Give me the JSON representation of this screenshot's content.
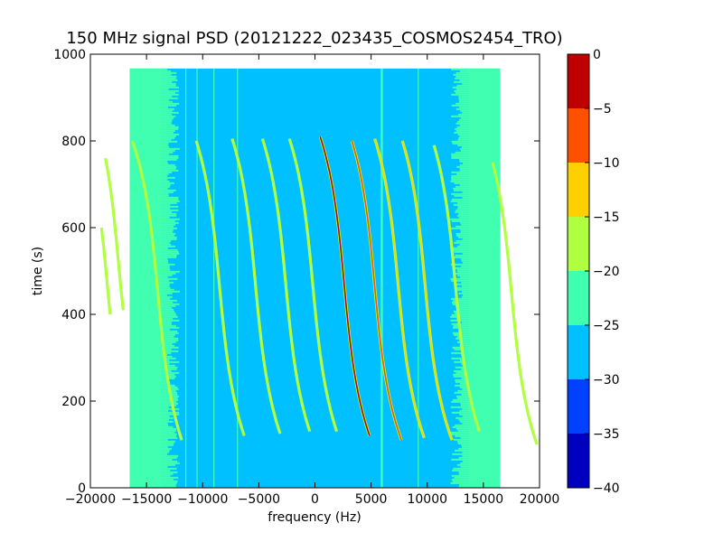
{
  "chart_data": {
    "type": "heatmap",
    "title": "150 MHz signal PSD (20121222_023435_COSMOS2454_TRO)",
    "xlabel": "frequency (Hz)",
    "ylabel": "time (s)",
    "xlim": [
      -20000,
      20000
    ],
    "ylim": [
      0,
      1000
    ],
    "xticks": [
      -20000,
      -15000,
      -10000,
      -5000,
      0,
      5000,
      10000,
      15000,
      20000
    ],
    "yticks": [
      0,
      200,
      400,
      600,
      800,
      1000
    ],
    "data_extent": {
      "x": [
        -16500,
        16500
      ],
      "y": [
        0,
        967
      ]
    },
    "background_level_dB": -28,
    "edge_noise_level_dB": -23,
    "grid": false,
    "colorbar": {
      "levels": [
        -40,
        -35,
        -30,
        -25,
        -20,
        -15,
        -10,
        -5,
        0
      ],
      "colors": [
        "#0000c0",
        "#0040ff",
        "#00c0ff",
        "#40ffb0",
        "#b0ff40",
        "#ffd000",
        "#ff5000",
        "#c00000"
      ],
      "ticks": [
        0,
        -5,
        -10,
        -15,
        -20,
        -25,
        -30,
        -35,
        -40
      ],
      "position": "right"
    },
    "vertical_lines_hz": [
      -11500,
      -10500,
      -9000,
      -6900,
      5900,
      6000,
      9200
    ],
    "doppler_traces": [
      {
        "center_hz": -18500,
        "t_center": 470,
        "t_start": 400,
        "t_end": 600,
        "peak_dB": -17
      },
      {
        "center_hz": -17500,
        "t_center": 520,
        "t_start": 410,
        "t_end": 760,
        "peak_dB": -18
      },
      {
        "center_hz": -14000,
        "t_center": 450,
        "t_start": 110,
        "t_end": 800,
        "peak_dB": -18
      },
      {
        "center_hz": -8500,
        "t_center": 465,
        "t_start": 120,
        "t_end": 800,
        "peak_dB": -20
      },
      {
        "center_hz": -5300,
        "t_center": 470,
        "t_start": 125,
        "t_end": 805,
        "peak_dB": -20
      },
      {
        "center_hz": -2600,
        "t_center": 470,
        "t_start": 130,
        "t_end": 805,
        "peak_dB": -17
      },
      {
        "center_hz": -200,
        "t_center": 470,
        "t_start": 130,
        "t_end": 805,
        "peak_dB": -18
      },
      {
        "center_hz": 2600,
        "t_center": 470,
        "t_start": 120,
        "t_end": 810,
        "peak_dB": -5
      },
      {
        "center_hz": 5300,
        "t_center": 470,
        "t_start": 110,
        "t_end": 800,
        "peak_dB": -9
      },
      {
        "center_hz": 7400,
        "t_center": 470,
        "t_start": 115,
        "t_end": 805,
        "peak_dB": -12
      },
      {
        "center_hz": 9800,
        "t_center": 470,
        "t_start": 110,
        "t_end": 800,
        "peak_dB": -15
      },
      {
        "center_hz": 12500,
        "t_center": 470,
        "t_start": 130,
        "t_end": 790,
        "peak_dB": -20
      },
      {
        "center_hz": 17500,
        "t_center": 450,
        "t_start": 100,
        "t_end": 750,
        "peak_dB": -18
      }
    ]
  }
}
